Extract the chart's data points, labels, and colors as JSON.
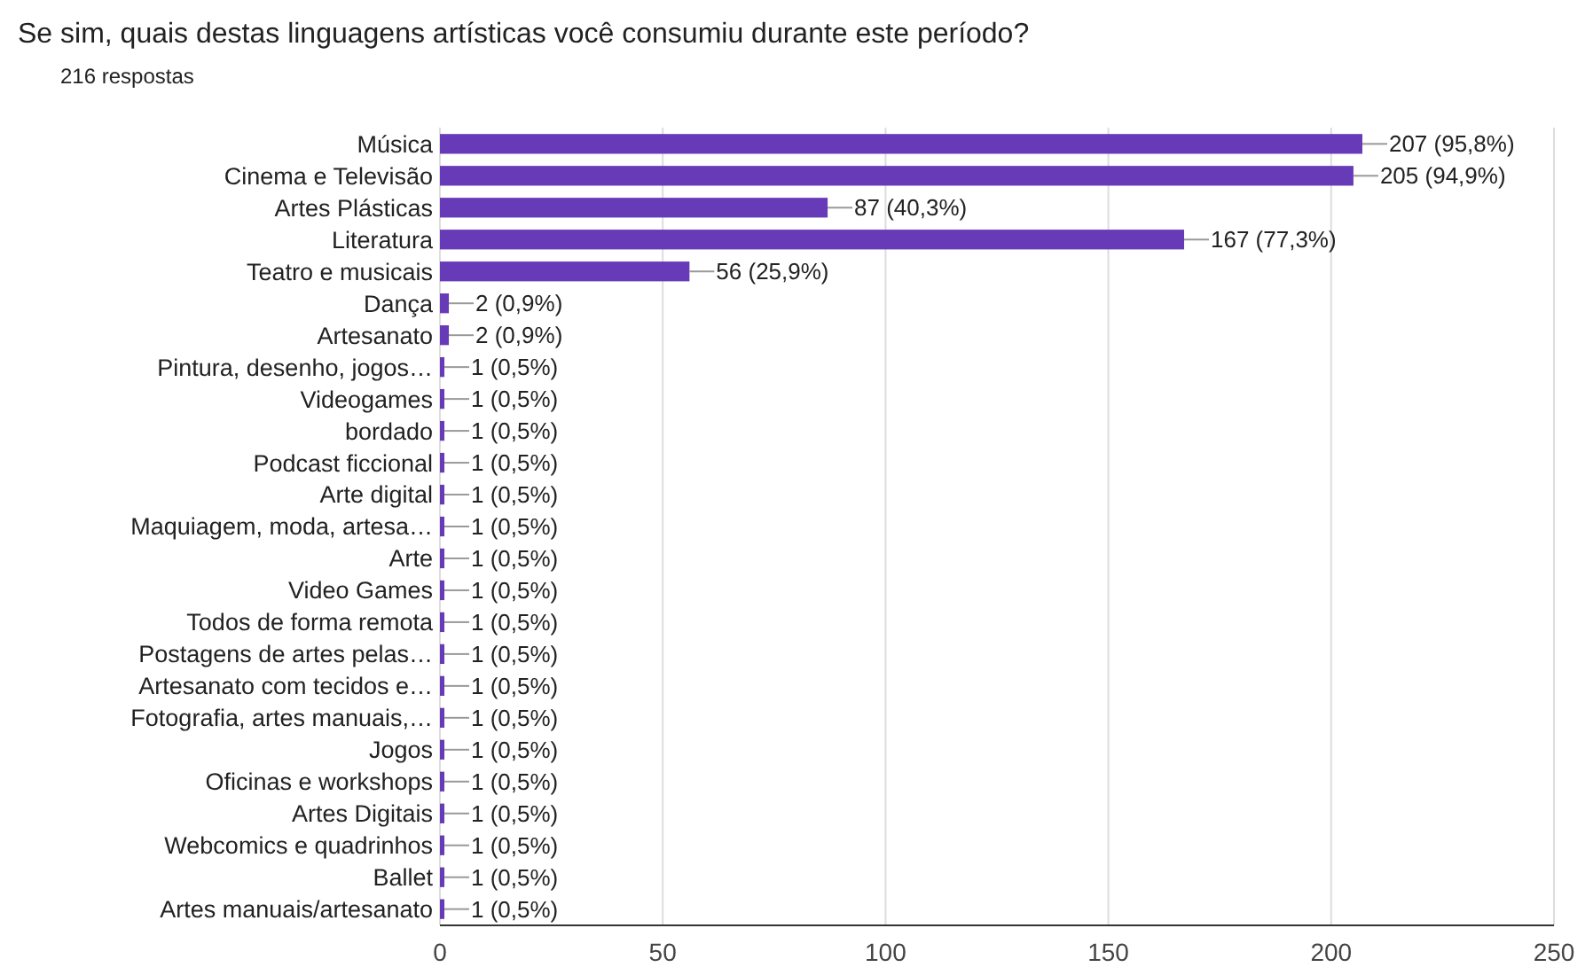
{
  "chart_data": {
    "type": "bar",
    "orientation": "horizontal",
    "title": "Se sim, quais destas linguagens artísticas você consumiu durante este período?",
    "subtitle": "216 respostas",
    "categories": [
      "Música",
      "Cinema e Televisão",
      "Artes Plásticas",
      "Literatura",
      "Teatro e musicais",
      "Dança",
      "Artesanato",
      "Pintura, desenho, jogos…",
      "Videogames",
      "bordado",
      "Podcast ficcional",
      "Arte digital",
      "Maquiagem, moda, artesa…",
      "Arte",
      "Video Games",
      "Todos de forma remota",
      "Postagens de artes pelas…",
      "Artesanato com tecidos e…",
      "Fotografia, artes manuais,…",
      "Jogos",
      "Oficinas e workshops",
      "Artes Digitais",
      "Webcomics e quadrinhos",
      "Ballet",
      "Artes manuais/artesanato"
    ],
    "values": [
      207,
      205,
      87,
      167,
      56,
      2,
      2,
      1,
      1,
      1,
      1,
      1,
      1,
      1,
      1,
      1,
      1,
      1,
      1,
      1,
      1,
      1,
      1,
      1,
      1
    ],
    "value_labels": [
      "207 (95,8%)",
      "205 (94,9%)",
      "87 (40,3%)",
      "167 (77,3%)",
      "56 (25,9%)",
      "2 (0,9%)",
      "2 (0,9%)",
      "1 (0,5%)",
      "1 (0,5%)",
      "1 (0,5%)",
      "1 (0,5%)",
      "1 (0,5%)",
      "1 (0,5%)",
      "1 (0,5%)",
      "1 (0,5%)",
      "1 (0,5%)",
      "1 (0,5%)",
      "1 (0,5%)",
      "1 (0,5%)",
      "1 (0,5%)",
      "1 (0,5%)",
      "1 (0,5%)",
      "1 (0,5%)",
      "1 (0,5%)",
      "1 (0,5%)"
    ],
    "color": "#673ab7",
    "xlim": [
      0,
      250
    ],
    "xticks": [
      0,
      50,
      100,
      150,
      200,
      250
    ],
    "grid": "x"
  }
}
